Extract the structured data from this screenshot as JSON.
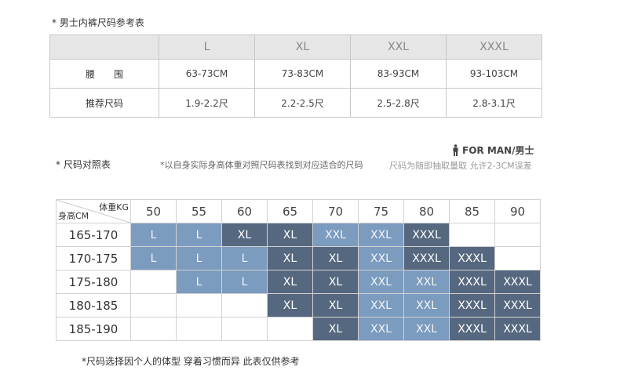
{
  "underwear_chart": {
    "title": "* 男士内裤尺码参考表",
    "sizes": [
      "L",
      "XL",
      "XXL",
      "XXXL"
    ],
    "rows": [
      {
        "label": "腰　　围",
        "values": [
          "63-73CM",
          "73-83CM",
          "83-93CM",
          "93-103CM"
        ]
      },
      {
        "label": "推荐尺码",
        "values": [
          "1.9-2.2尺",
          "2.2-2.5尺",
          "2.5-2.8尺",
          "2.8-3.1尺"
        ]
      }
    ]
  },
  "comparison": {
    "title": "* 尺码对照表",
    "hint": "*以自身实际身高体重对照尺码表找到对应适合的尺码",
    "hint2": "尺码为随即抽取量取 允许2-3CM误差",
    "brand": "FOR MAN/男士",
    "corner_weight": "体重KG",
    "corner_height": "身高CM",
    "weights": [
      "50",
      "55",
      "60",
      "65",
      "70",
      "75",
      "80",
      "85",
      "90"
    ],
    "rows": [
      {
        "height": "165-170",
        "cells": [
          "L",
          "L",
          "XL",
          "XL",
          "XXL",
          "XXL",
          "XXXL",
          "",
          ""
        ]
      },
      {
        "height": "170-175",
        "cells": [
          "L",
          "L",
          "L",
          "XL",
          "XL",
          "XXL",
          "XXXL",
          "XXXL",
          ""
        ]
      },
      {
        "height": "175-180",
        "cells": [
          "",
          "L",
          "L",
          "XL",
          "XL",
          "XXL",
          "XXL",
          "XXXL",
          "XXXL"
        ]
      },
      {
        "height": "180-185",
        "cells": [
          "",
          "",
          "",
          "XL",
          "XL",
          "XXL",
          "XXL",
          "XXXL",
          "XXXL"
        ]
      },
      {
        "height": "185-190",
        "cells": [
          "",
          "",
          "",
          "",
          "XL",
          "XXL",
          "XXL",
          "XXXL",
          "XXXL"
        ]
      }
    ],
    "colors": {
      "light": "#7b9bbf",
      "dark": "#56687f",
      "blank": "#ffffff"
    },
    "shades": [
      [
        "light",
        "light",
        "dark",
        "dark",
        "light",
        "light",
        "dark",
        "blank",
        "blank"
      ],
      [
        "light",
        "light",
        "light",
        "dark",
        "dark",
        "light",
        "dark",
        "dark",
        "blank"
      ],
      [
        "blank",
        "light",
        "light",
        "dark",
        "dark",
        "light",
        "light",
        "dark",
        "dark"
      ],
      [
        "blank",
        "blank",
        "blank",
        "dark",
        "dark",
        "light",
        "light",
        "dark",
        "dark"
      ],
      [
        "blank",
        "blank",
        "blank",
        "blank",
        "dark",
        "light",
        "light",
        "dark",
        "dark"
      ]
    ]
  },
  "footnote": "*尺码选择因个人的体型 穿着习惯而异 此表仅供参考"
}
